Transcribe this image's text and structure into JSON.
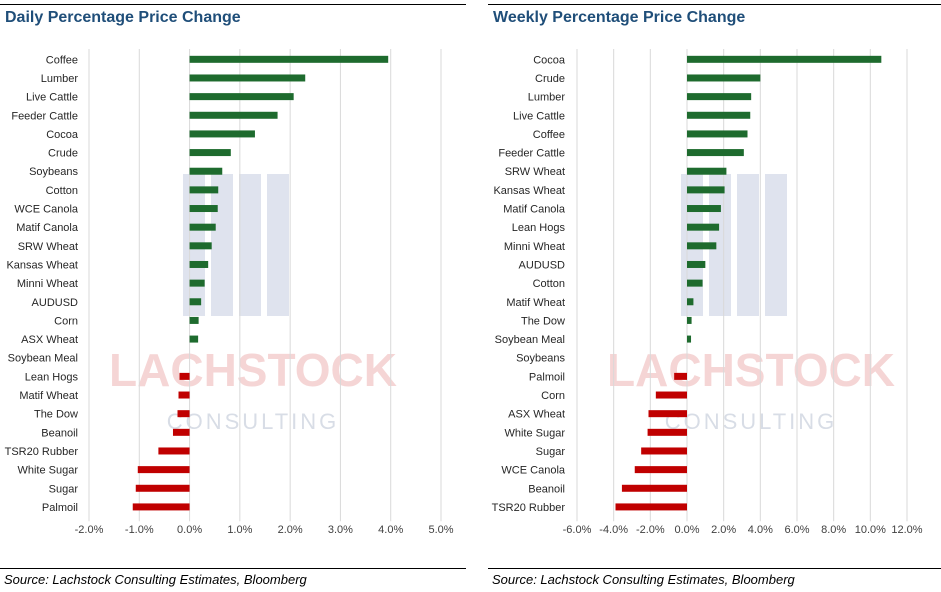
{
  "colors": {
    "positive": "#1e6b2e",
    "negative": "#c00000",
    "title": "#1f4e79",
    "grid": "#d9d9d9"
  },
  "watermark": {
    "name": "LACHSTOCK",
    "sub": "CONSULTING"
  },
  "chart_data": [
    {
      "type": "bar",
      "orientation": "horizontal",
      "title": "Daily Percentage Price Change",
      "source": "Source: Lachstock Consulting Estimates, Bloomberg",
      "categories": [
        "Coffee",
        "Lumber",
        "Live Cattle",
        "Feeder Cattle",
        "Cocoa",
        "Crude",
        "Soybeans",
        "Cotton",
        "WCE Canola",
        "Matif Canola",
        "SRW Wheat",
        "Kansas Wheat",
        "Minni Wheat",
        "AUDUSD",
        "Corn",
        "ASX Wheat",
        "Soybean Meal",
        "Lean Hogs",
        "Matif Wheat",
        "The Dow",
        "Beanoil",
        "TSR20 Rubber",
        "White Sugar",
        "Sugar",
        "Palmoil"
      ],
      "values": [
        3.95,
        2.3,
        2.07,
        1.75,
        1.3,
        0.82,
        0.65,
        0.57,
        0.56,
        0.52,
        0.44,
        0.37,
        0.3,
        0.23,
        0.18,
        0.17,
        0.0,
        -0.2,
        -0.22,
        -0.24,
        -0.33,
        -0.62,
        -1.03,
        -1.07,
        -1.13
      ],
      "xlim": [
        -2,
        5
      ],
      "xticks": [
        -2,
        -1,
        0,
        1,
        2,
        3,
        4,
        5
      ],
      "xtick_labels": [
        "-2.0%",
        "-1.0%",
        "0.0%",
        "1.0%",
        "2.0%",
        "3.0%",
        "4.0%",
        "5.0%"
      ],
      "grid": "vertical"
    },
    {
      "type": "bar",
      "orientation": "horizontal",
      "title": "Weekly Percentage Price Change",
      "source": "Source: Lachstock Consulting Estimates, Bloomberg",
      "categories": [
        "Cocoa",
        "Crude",
        "Lumber",
        "Live Cattle",
        "Coffee",
        "Feeder Cattle",
        "SRW Wheat",
        "Kansas Wheat",
        "Matif Canola",
        "Lean Hogs",
        "Minni Wheat",
        "AUDUSD",
        "Cotton",
        "Matif Wheat",
        "The Dow",
        "Soybean Meal",
        "Soybeans",
        "Palmoil",
        "Corn",
        "ASX Wheat",
        "White Sugar",
        "Sugar",
        "WCE Canola",
        "Beanoil",
        "TSR20 Rubber"
      ],
      "values": [
        10.6,
        4.0,
        3.5,
        3.45,
        3.3,
        3.1,
        2.15,
        2.05,
        1.85,
        1.75,
        1.6,
        1.0,
        0.85,
        0.35,
        0.25,
        0.22,
        0.0,
        -0.7,
        -1.7,
        -2.1,
        -2.15,
        -2.5,
        -2.85,
        -3.55,
        -3.9
      ],
      "xlim": [
        -6,
        12
      ],
      "xticks": [
        -6,
        -4,
        -2,
        0,
        2,
        4,
        6,
        8,
        10,
        12
      ],
      "xtick_labels": [
        "-6.0%",
        "-4.0%",
        "-2.0%",
        "0.0%",
        "2.0%",
        "4.0%",
        "6.0%",
        "8.0%",
        "10.0%",
        "12.0%"
      ],
      "grid": "vertical"
    }
  ]
}
